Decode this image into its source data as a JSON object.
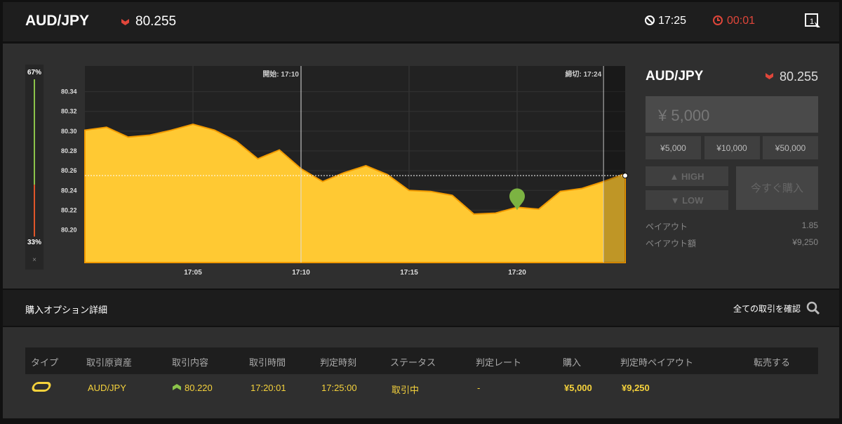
{
  "header": {
    "pair": "AUD/JPY",
    "price": "80.255",
    "time": "17:25",
    "countdown": "00:01"
  },
  "sentiment": {
    "values": [
      67,
      33
    ],
    "value_labels": [
      "67%",
      "33%"
    ],
    "close": "×"
  },
  "chart_data": {
    "type": "area",
    "color": "#ffc933",
    "line_color": "#f29a00",
    "x": [
      "17:00",
      "17:01",
      "17:02",
      "17:03",
      "17:04",
      "17:05",
      "17:06",
      "17:07",
      "17:08",
      "17:09",
      "17:10",
      "17:11",
      "17:12",
      "17:13",
      "17:14",
      "17:15",
      "17:16",
      "17:17",
      "17:18",
      "17:19",
      "17:20",
      "17:21",
      "17:22",
      "17:23",
      "17:24",
      "17:25"
    ],
    "values": [
      80.301,
      80.304,
      80.294,
      80.296,
      80.301,
      80.307,
      80.301,
      80.29,
      80.272,
      80.281,
      80.262,
      80.249,
      80.258,
      80.265,
      80.256,
      80.24,
      80.239,
      80.235,
      80.216,
      80.217,
      80.223,
      80.221,
      80.239,
      80.242,
      80.249,
      80.257
    ],
    "xlim": [
      "17:00",
      "17:25"
    ],
    "xticks": [
      "17:05",
      "17:10",
      "17:15",
      "17:20"
    ],
    "ylim": [
      80.167,
      80.366
    ],
    "yticks": [
      {
        "value": 80.2,
        "label": "80.20"
      },
      80.22,
      80.24,
      80.26,
      80.28,
      {
        "value": 80.3,
        "label": "80.30"
      },
      80.32,
      80.34
    ],
    "markers": [
      {
        "x": "17:10",
        "label": "開始: 17:10"
      },
      {
        "x": "17:24",
        "label": "締切: 17:24"
      }
    ],
    "entry": {
      "x": "17:20",
      "value": 80.22
    },
    "current": 80.255
  },
  "panel": {
    "pair": "AUD/JPY",
    "price": "80.255",
    "amount": "¥ 5,000",
    "presets": [
      "¥5,000",
      "¥10,000",
      "¥50,000"
    ],
    "high": "HIGH",
    "low": "LOW",
    "buy": "今すぐ購入",
    "payout_label": "ペイアウト",
    "payout": "1.85",
    "payout_amount_label": "ペイアウト額",
    "payout_amount": "¥9,250"
  },
  "section": {
    "title": "購入オプション詳細",
    "link": "全ての取引を確認"
  },
  "table": {
    "headers": [
      "タイプ",
      "取引原資産",
      "取引内容",
      "取引時間",
      "判定時刻",
      "ステータス",
      "判定レート",
      "購入",
      "判定時ペイアウト",
      "転売する"
    ],
    "rows": [
      [
        "",
        "AUD/JPY",
        "80.220",
        "17:20:01",
        "17:25:00",
        "取引中",
        "-",
        "¥5,000",
        "¥9,250",
        ""
      ]
    ]
  }
}
